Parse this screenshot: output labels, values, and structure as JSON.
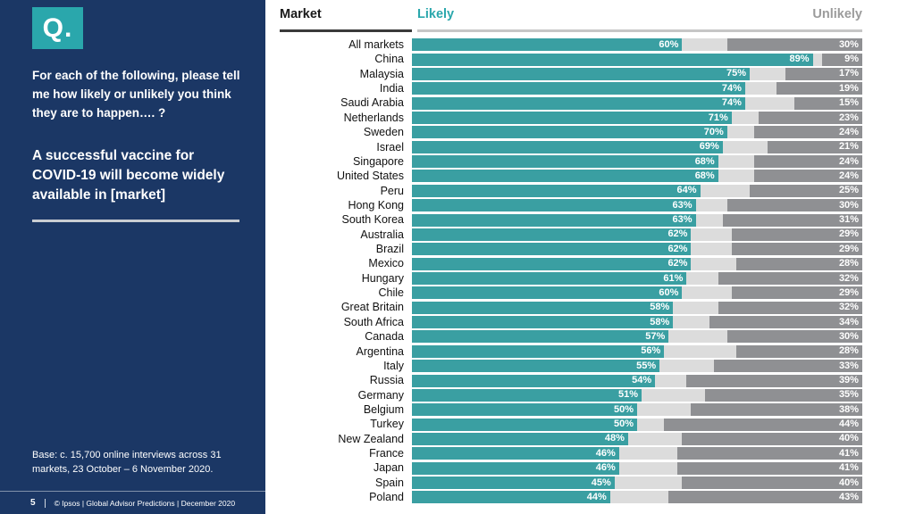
{
  "sidebar": {
    "logo": "Q.",
    "question": "For each of the following, please tell me how likely or unlikely you think they are to happen…. ?",
    "statement": "A successful vaccine for COVID-19 will become widely available in [market]",
    "base_note": "Base: c. 15,700 online interviews across 31 markets,  23 October – 6 November 2020.",
    "page_number": "5",
    "footer": "© Ipsos | Global Advisor Predictions | December 2020"
  },
  "header": {
    "market_label": "Market",
    "likely_label": "Likely",
    "unlikely_label": "Unlikely"
  },
  "colors": {
    "sidebar_bg": "#1b3765",
    "likely": "#3a9fa2",
    "likely_header": "#2aa7ac",
    "neutral": "#dcdcdc",
    "unlikely": "#8f9093",
    "unlikely_header": "#9b9b9b"
  },
  "chart_data": {
    "type": "bar",
    "orientation": "horizontal",
    "stacked": true,
    "title": "A successful vaccine for COVID-19 will become widely available in [market]",
    "value_suffix": "%",
    "xlim": [
      0,
      100
    ],
    "legend_position": "top",
    "categories": [
      "All markets",
      "China",
      "Malaysia",
      "India",
      "Saudi Arabia",
      "Netherlands",
      "Sweden",
      "Israel",
      "Singapore",
      "United States",
      "Peru",
      "Hong Kong",
      "South Korea",
      "Australia",
      "Brazil",
      "Mexico",
      "Hungary",
      "Chile",
      "Great Britain",
      "South Africa",
      "Canada",
      "Argentina",
      "Italy",
      "Russia",
      "Germany",
      "Belgium",
      "Turkey",
      "New Zealand",
      "France",
      "Japan",
      "Spain",
      "Poland"
    ],
    "series": [
      {
        "name": "Likely",
        "values": [
          60,
          89,
          75,
          74,
          74,
          71,
          70,
          69,
          68,
          68,
          64,
          63,
          63,
          62,
          62,
          62,
          61,
          60,
          58,
          58,
          57,
          56,
          55,
          54,
          51,
          50,
          50,
          48,
          46,
          46,
          45,
          44
        ]
      },
      {
        "name": "Unlikely",
        "values": [
          30,
          9,
          17,
          19,
          15,
          23,
          24,
          21,
          24,
          24,
          25,
          30,
          31,
          29,
          29,
          28,
          32,
          29,
          32,
          34,
          30,
          28,
          33,
          39,
          35,
          38,
          44,
          40,
          41,
          41,
          40,
          43
        ]
      }
    ]
  }
}
